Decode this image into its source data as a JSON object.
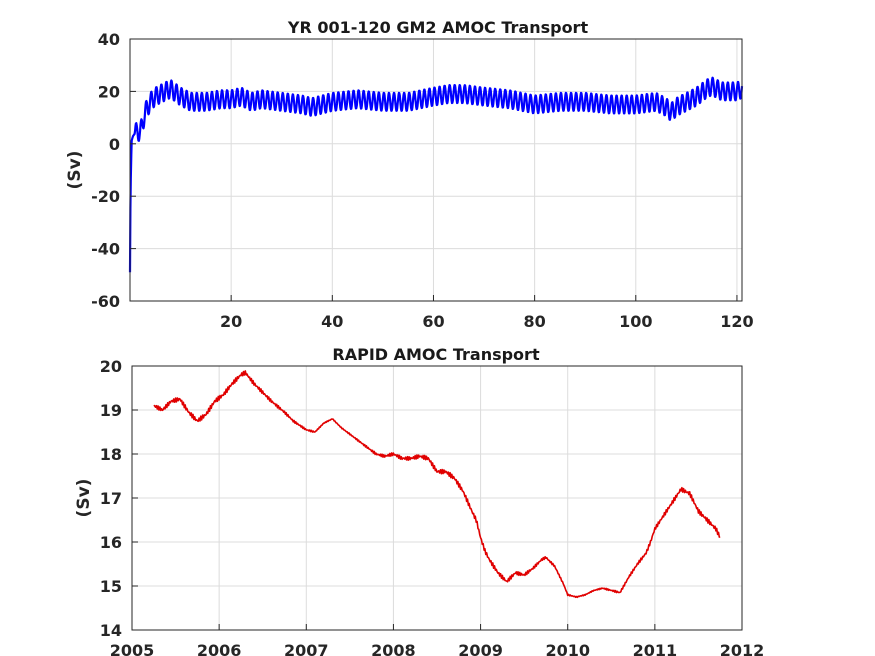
{
  "chart_data": [
    {
      "type": "line",
      "title": "YR 001-120 GM2 AMOC Transport",
      "ylabel": "(Sv)",
      "xlabel": "",
      "xlim": [
        0,
        121
      ],
      "ylim": [
        -60,
        40
      ],
      "xticks": [
        20,
        40,
        60,
        80,
        100,
        120
      ],
      "xtick_labels": [
        "20",
        "40",
        "60",
        "80",
        "100",
        "120"
      ],
      "yticks": [
        -60,
        -40,
        -20,
        0,
        20,
        40
      ],
      "ytick_labels": [
        "-60",
        "-40",
        "-20",
        "0",
        "20",
        "40"
      ],
      "grid": true,
      "series": [
        {
          "color": "#0000ff",
          "seasonal_amplitude": 3.5,
          "x": [
            0,
            0.1,
            0.3,
            0.6,
            1,
            1.5,
            2,
            3,
            4,
            5,
            6,
            8,
            10,
            12,
            15,
            18,
            20,
            22,
            24,
            26,
            30,
            34,
            36,
            40,
            45,
            50,
            55,
            60,
            63,
            66,
            70,
            75,
            80,
            85,
            90,
            95,
            100,
            104,
            106,
            107,
            108,
            110,
            112,
            114,
            115,
            117,
            120,
            121
          ],
          "values": [
            -49,
            -20,
            1,
            3,
            4,
            5,
            4,
            12,
            16,
            18,
            19,
            21,
            18,
            16,
            16,
            17,
            17,
            18,
            16,
            17,
            16,
            15,
            14,
            16,
            17,
            16,
            16,
            18,
            19,
            19,
            18,
            17,
            15,
            16,
            16,
            15,
            15,
            16,
            14,
            12,
            14,
            16,
            18,
            21,
            22,
            20,
            20,
            21
          ]
        }
      ]
    },
    {
      "type": "line",
      "title": "RAPID AMOC Transport",
      "ylabel": "(Sv)",
      "xlabel": "",
      "xlim": [
        2005,
        2012
      ],
      "ylim": [
        14,
        20
      ],
      "xticks": [
        2005,
        2006,
        2007,
        2008,
        2009,
        2010,
        2011,
        2012
      ],
      "xtick_labels": [
        "2005",
        "2006",
        "2007",
        "2008",
        "2009",
        "2010",
        "2011",
        "2012"
      ],
      "yticks": [
        14,
        15,
        16,
        17,
        18,
        19,
        20
      ],
      "ytick_labels": [
        "14",
        "15",
        "16",
        "17",
        "18",
        "19",
        "20"
      ],
      "grid": true,
      "series": [
        {
          "color": "#e00000",
          "x": [
            2005.25,
            2005.35,
            2005.45,
            2005.55,
            2005.65,
            2005.75,
            2005.85,
            2005.95,
            2006.05,
            2006.15,
            2006.25,
            2006.3,
            2006.4,
            2006.5,
            2006.6,
            2006.75,
            2006.85,
            2007.0,
            2007.1,
            2007.2,
            2007.3,
            2007.4,
            2007.5,
            2007.6,
            2007.7,
            2007.8,
            2007.9,
            2008.0,
            2008.1,
            2008.2,
            2008.3,
            2008.4,
            2008.5,
            2008.6,
            2008.7,
            2008.8,
            2008.9,
            2008.95,
            2009.0,
            2009.05,
            2009.1,
            2009.2,
            2009.3,
            2009.4,
            2009.5,
            2009.6,
            2009.7,
            2009.75,
            2009.85,
            2009.95,
            2010.0,
            2010.1,
            2010.2,
            2010.3,
            2010.4,
            2010.5,
            2010.6,
            2010.7,
            2010.8,
            2010.9,
            2010.95,
            2011.0,
            2011.1,
            2011.2,
            2011.3,
            2011.4,
            2011.5,
            2011.6,
            2011.7,
            2011.75
          ],
          "values": [
            19.1,
            19.0,
            19.2,
            19.25,
            18.95,
            18.75,
            18.9,
            19.2,
            19.35,
            19.6,
            19.8,
            19.85,
            19.6,
            19.4,
            19.2,
            18.95,
            18.75,
            18.55,
            18.5,
            18.7,
            18.8,
            18.6,
            18.45,
            18.3,
            18.15,
            18.0,
            17.95,
            18.0,
            17.9,
            17.9,
            17.95,
            17.9,
            17.6,
            17.6,
            17.45,
            17.15,
            16.7,
            16.5,
            16.1,
            15.8,
            15.6,
            15.3,
            15.1,
            15.3,
            15.25,
            15.4,
            15.6,
            15.65,
            15.45,
            15.05,
            14.8,
            14.75,
            14.8,
            14.9,
            14.95,
            14.9,
            14.85,
            15.2,
            15.5,
            15.75,
            16.0,
            16.3,
            16.6,
            16.9,
            17.2,
            17.1,
            16.7,
            16.5,
            16.3,
            16.1
          ]
        }
      ]
    }
  ]
}
